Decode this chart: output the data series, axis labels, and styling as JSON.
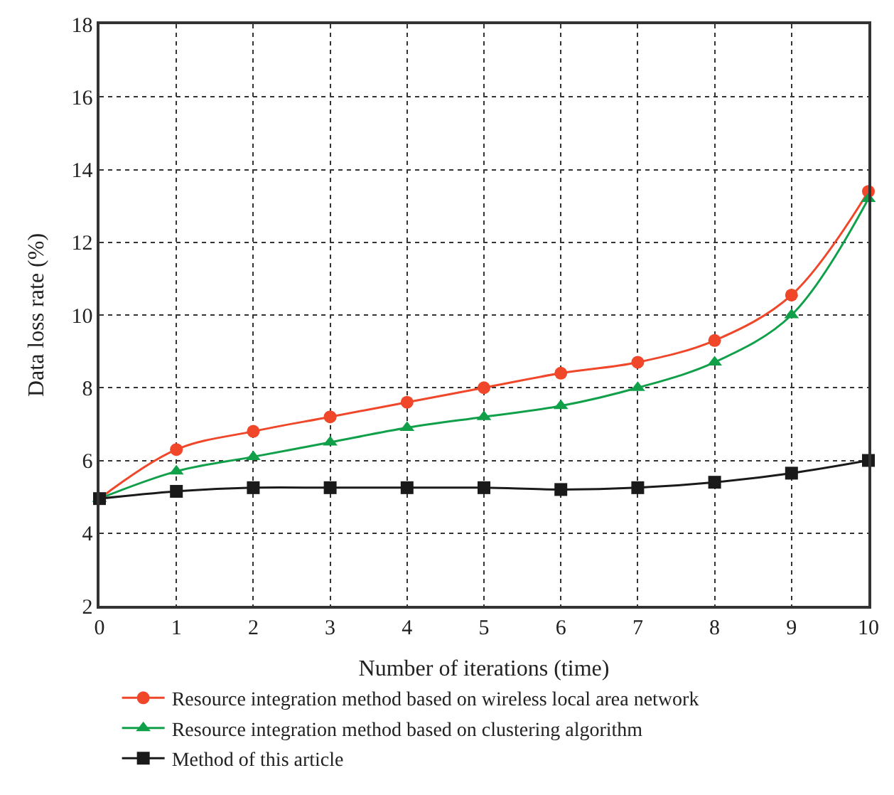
{
  "chart_data": {
    "type": "line",
    "xlabel": "Number of iterations (time)",
    "ylabel": "Data loss rate (%)",
    "x": [
      0,
      1,
      2,
      3,
      4,
      5,
      6,
      7,
      8,
      9,
      10
    ],
    "series": [
      {
        "name": "Resource integration method based on wireless local area network",
        "color": "#f0462a",
        "marker": "circle",
        "values": [
          4.95,
          6.3,
          6.8,
          7.2,
          7.6,
          8.0,
          8.4,
          8.7,
          9.3,
          10.55,
          13.4
        ]
      },
      {
        "name": "Resource integration method based on clustering algorithm",
        "color": "#10a04a",
        "marker": "triangle",
        "values": [
          4.95,
          5.7,
          6.1,
          6.5,
          6.9,
          7.2,
          7.5,
          8.0,
          8.7,
          10.0,
          13.2
        ]
      },
      {
        "name": "Method of this article",
        "color": "#1a1a1a",
        "marker": "square",
        "values": [
          4.95,
          5.15,
          5.25,
          5.25,
          5.25,
          5.25,
          5.2,
          5.25,
          5.4,
          5.65,
          6.0
        ]
      }
    ],
    "xlim": [
      0,
      10
    ],
    "xticks": [
      0,
      1,
      2,
      3,
      4,
      5,
      6,
      7,
      8,
      9,
      10
    ],
    "ylim": [
      2,
      18
    ],
    "yticks": [
      2,
      4,
      6,
      8,
      10,
      12,
      14,
      16,
      18
    ],
    "grid": true,
    "legend": "bottom",
    "line_style": "solid"
  }
}
